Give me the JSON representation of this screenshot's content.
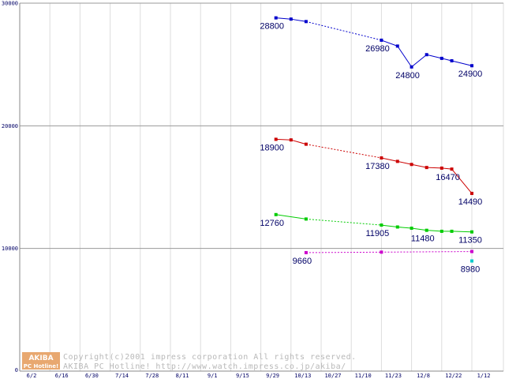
{
  "chart_data": {
    "type": "line",
    "x_ticks": [
      "6/2",
      "6/16",
      "6/30",
      "7/14",
      "7/28",
      "8/11",
      "9/1",
      "9/15",
      "9/29",
      "10/13",
      "10/27",
      "11/10",
      "11/23",
      "12/8",
      "12/22",
      "1/12"
    ],
    "y_ticks": [
      "0",
      "10000",
      "20000",
      "30000"
    ],
    "ylim": [
      0,
      30000
    ],
    "grid": true,
    "series": [
      {
        "color": "#0000cc",
        "points": [
          {
            "x": "10/6",
            "y": 28800
          },
          {
            "x": "10/13",
            "y": 28700
          },
          {
            "x": "10/20",
            "y": 28500
          },
          {
            "x": "11/23",
            "y": 26980
          },
          {
            "x": "12/1",
            "y": 26500
          },
          {
            "x": "12/8",
            "y": 24800
          },
          {
            "x": "12/15",
            "y": 25800
          },
          {
            "x": "12/22",
            "y": 25500
          },
          {
            "x": "12/29",
            "y": 25300
          },
          {
            "x": "1/12",
            "y": 24900
          }
        ],
        "dotted_segments": [
          [
            2,
            3
          ]
        ],
        "labels": [
          {
            "index": 0,
            "text": "28800"
          },
          {
            "index": 3,
            "text": "26980"
          },
          {
            "index": 5,
            "text": "24800"
          },
          {
            "index": 9,
            "text": "24900"
          }
        ]
      },
      {
        "color": "#cc0000",
        "points": [
          {
            "x": "10/6",
            "y": 18900
          },
          {
            "x": "10/13",
            "y": 18850
          },
          {
            "x": "10/20",
            "y": 18500
          },
          {
            "x": "11/23",
            "y": 17380
          },
          {
            "x": "12/1",
            "y": 17100
          },
          {
            "x": "12/8",
            "y": 16850
          },
          {
            "x": "12/15",
            "y": 16600
          },
          {
            "x": "12/22",
            "y": 16550
          },
          {
            "x": "12/29",
            "y": 16470
          },
          {
            "x": "1/12",
            "y": 14490
          }
        ],
        "dotted_segments": [
          [
            2,
            3
          ]
        ],
        "labels": [
          {
            "index": 0,
            "text": "18900"
          },
          {
            "index": 3,
            "text": "17380"
          },
          {
            "index": 8,
            "text": "16470"
          },
          {
            "index": 9,
            "text": "14490"
          }
        ]
      },
      {
        "color": "#00cc00",
        "points": [
          {
            "x": "10/6",
            "y": 12760
          },
          {
            "x": "10/20",
            "y": 12400
          },
          {
            "x": "11/23",
            "y": 11905
          },
          {
            "x": "12/1",
            "y": 11750
          },
          {
            "x": "12/8",
            "y": 11650
          },
          {
            "x": "12/15",
            "y": 11480
          },
          {
            "x": "12/22",
            "y": 11400
          },
          {
            "x": "12/29",
            "y": 11400
          },
          {
            "x": "1/12",
            "y": 11350
          }
        ],
        "dotted_segments": [
          [
            1,
            2
          ]
        ],
        "labels": [
          {
            "index": 0,
            "text": "12760"
          },
          {
            "index": 2,
            "text": "11905"
          },
          {
            "index": 5,
            "text": "11480"
          },
          {
            "index": 8,
            "text": "11350"
          }
        ]
      },
      {
        "color": "#cc00cc",
        "points": [
          {
            "x": "10/20",
            "y": 9660
          },
          {
            "x": "11/23",
            "y": 9700
          },
          {
            "x": "1/12",
            "y": 9750
          }
        ],
        "dotted_segments": [
          [
            0,
            1
          ],
          [
            1,
            2
          ]
        ],
        "labels": [
          {
            "index": 0,
            "text": "9660"
          }
        ]
      },
      {
        "color": "#00cccc",
        "points": [
          {
            "x": "1/12",
            "y": 8980
          }
        ],
        "dotted_segments": [],
        "labels": [
          {
            "index": 0,
            "text": "8980"
          }
        ]
      }
    ]
  },
  "footer": {
    "logo_top": "AKIBA",
    "logo_bottom": "PC Hotline!",
    "copyright_line1": "Copyright(c)2001 impress corporation All rights reserved.",
    "copyright_line2": "AKIBA PC Hotline!  http://www.watch.impress.co.jp/akiba/",
    "logo_color": "#e8a870"
  }
}
